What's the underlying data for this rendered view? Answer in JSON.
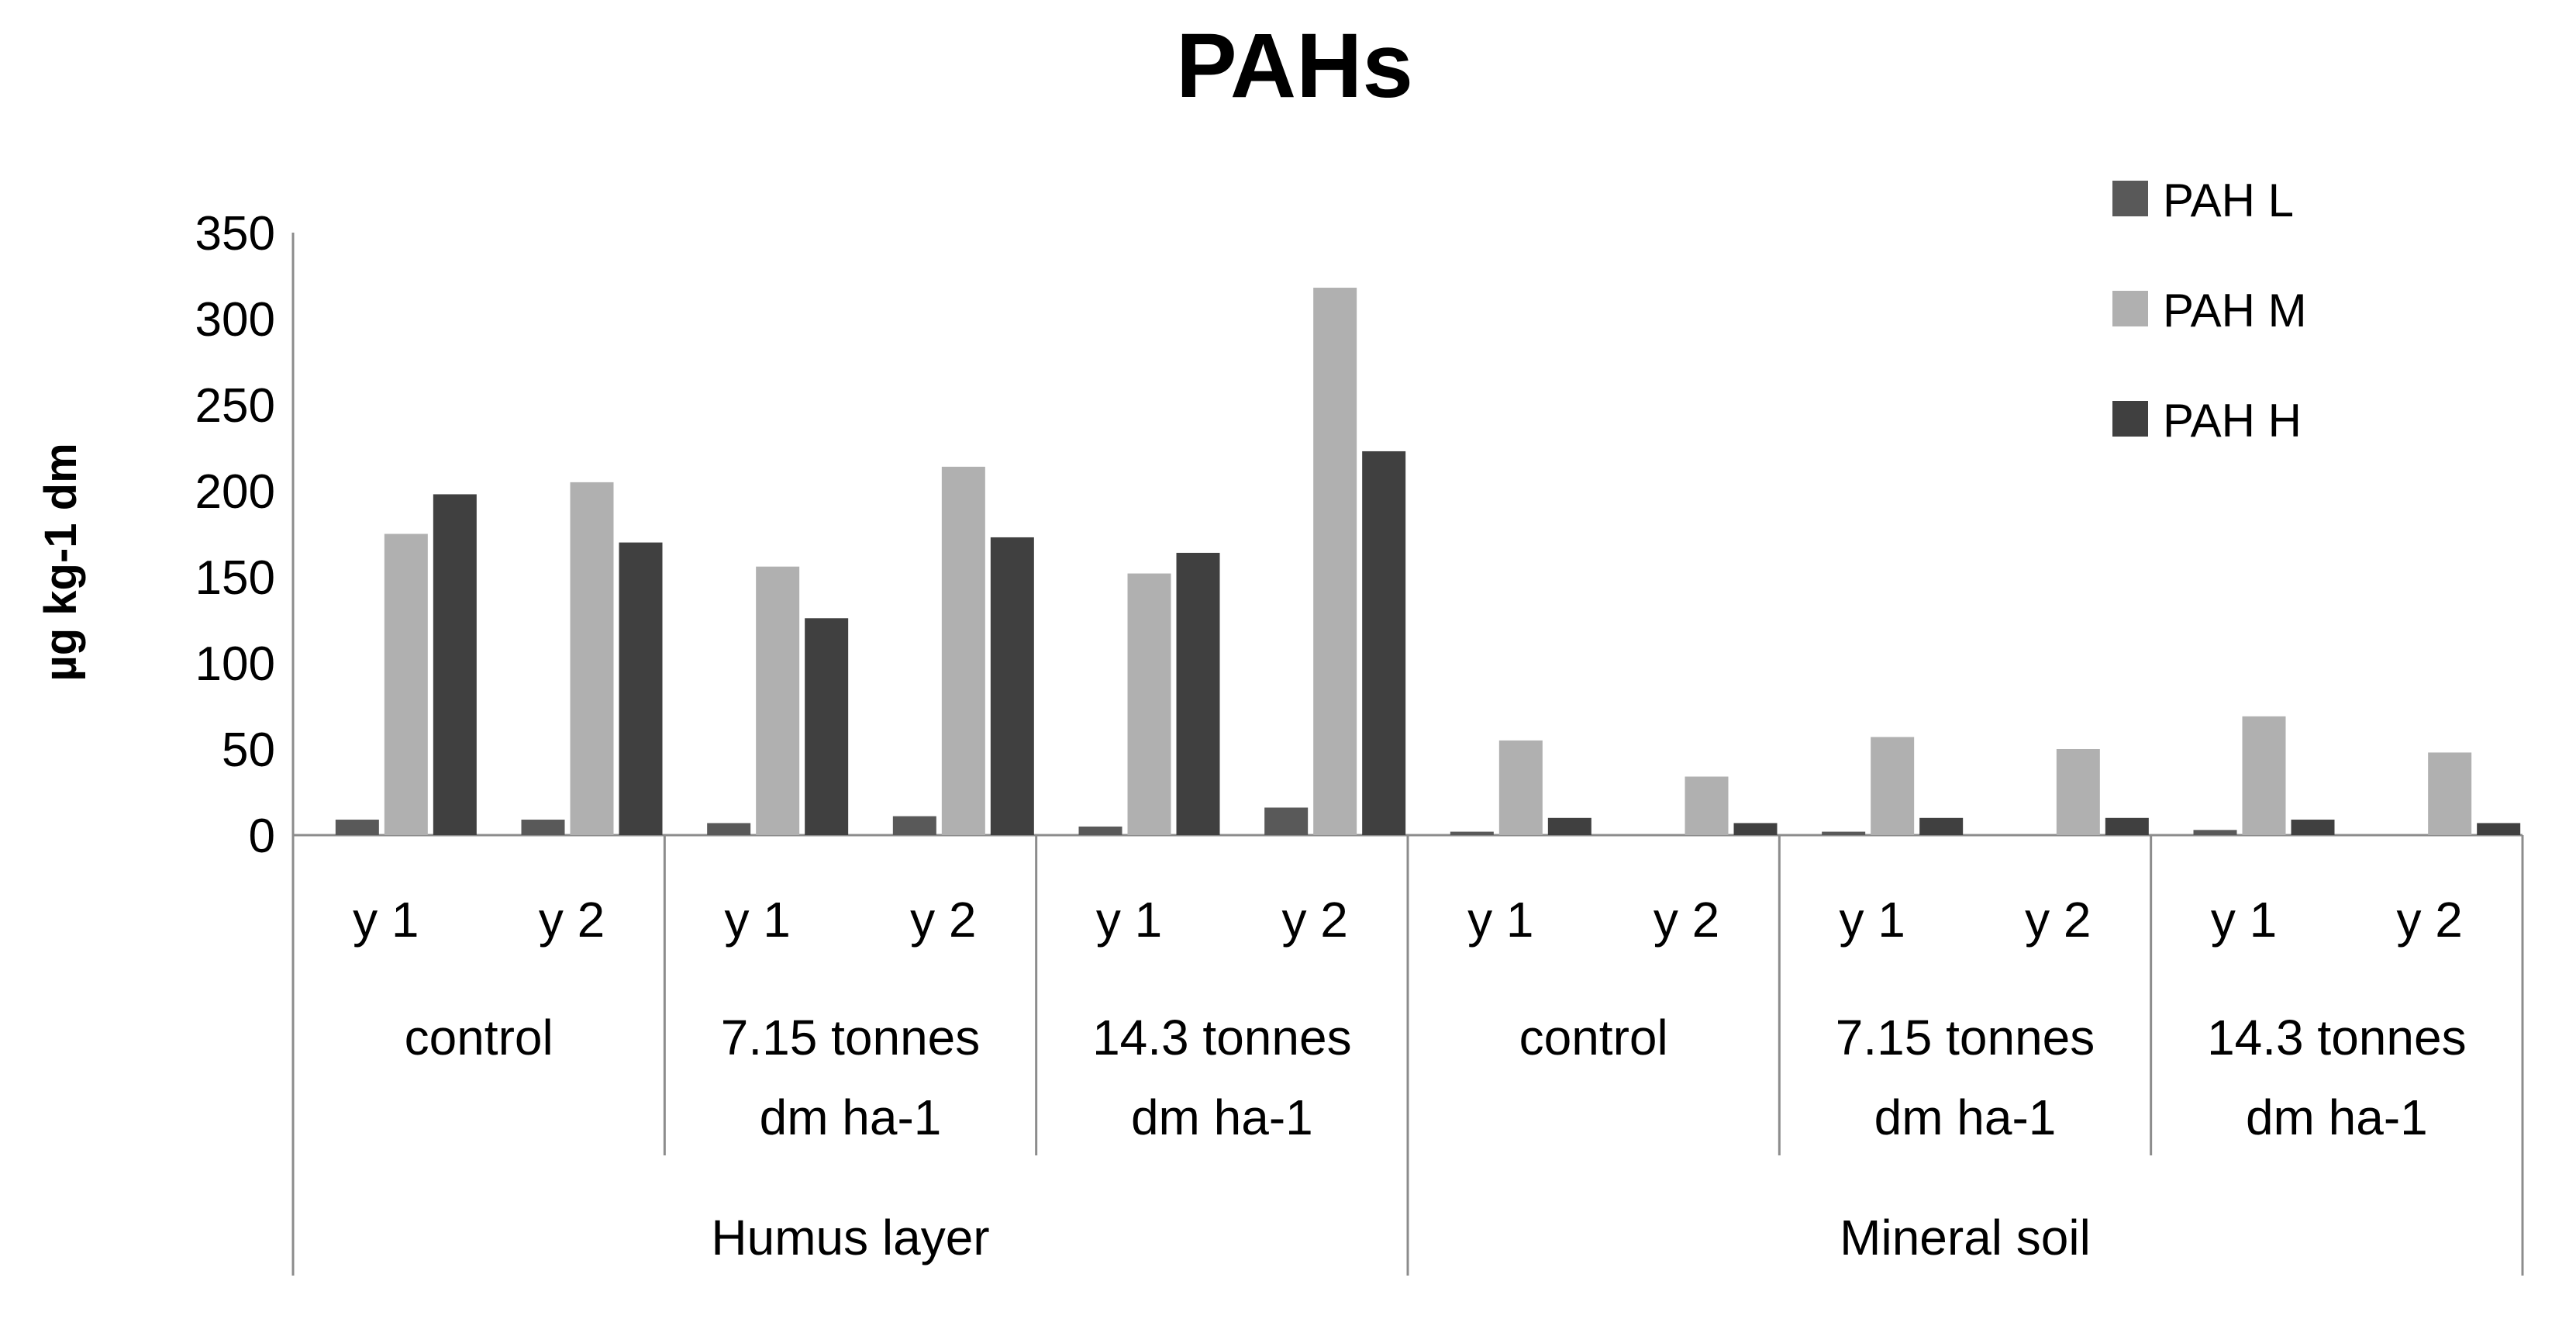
{
  "chart_data": {
    "type": "bar",
    "title": "PAHs",
    "xlabel": "",
    "ylabel": "µg kg-1 dm",
    "ylim": [
      0,
      350
    ],
    "yticks": [
      0,
      50,
      100,
      150,
      200,
      250,
      300,
      350
    ],
    "categories": [
      "y 1",
      "y 2",
      "y 1",
      "y 2",
      "y 1",
      "y 2",
      "y 1",
      "y 2",
      "y 1",
      "y 2",
      "y 1",
      "y 2"
    ],
    "treatment_groups": [
      {
        "label_lines": [
          "control"
        ]
      },
      {
        "label_lines": [
          "7.15 tonnes",
          "dm ha-1"
        ]
      },
      {
        "label_lines": [
          "14.3 tonnes",
          "dm ha-1"
        ]
      },
      {
        "label_lines": [
          "control"
        ]
      },
      {
        "label_lines": [
          "7.15 tonnes",
          "dm ha-1"
        ]
      },
      {
        "label_lines": [
          "14.3 tonnes",
          "dm ha-1"
        ]
      }
    ],
    "layer_groups": [
      "Humus layer",
      "Mineral soil"
    ],
    "series": [
      {
        "name": "PAH L",
        "color": "#595959",
        "values": [
          9,
          9,
          7,
          11,
          5,
          16,
          2,
          0,
          2,
          0,
          3,
          0
        ]
      },
      {
        "name": "PAH M",
        "color": "#b0b0b0",
        "values": [
          175,
          205,
          156,
          214,
          152,
          318,
          55,
          34,
          57,
          50,
          69,
          48
        ]
      },
      {
        "name": "PAH H",
        "color": "#404040",
        "values": [
          198,
          170,
          126,
          173,
          164,
          223,
          10,
          7,
          10,
          10,
          9,
          7
        ]
      }
    ],
    "legend_position": "top-right",
    "grid": false
  }
}
